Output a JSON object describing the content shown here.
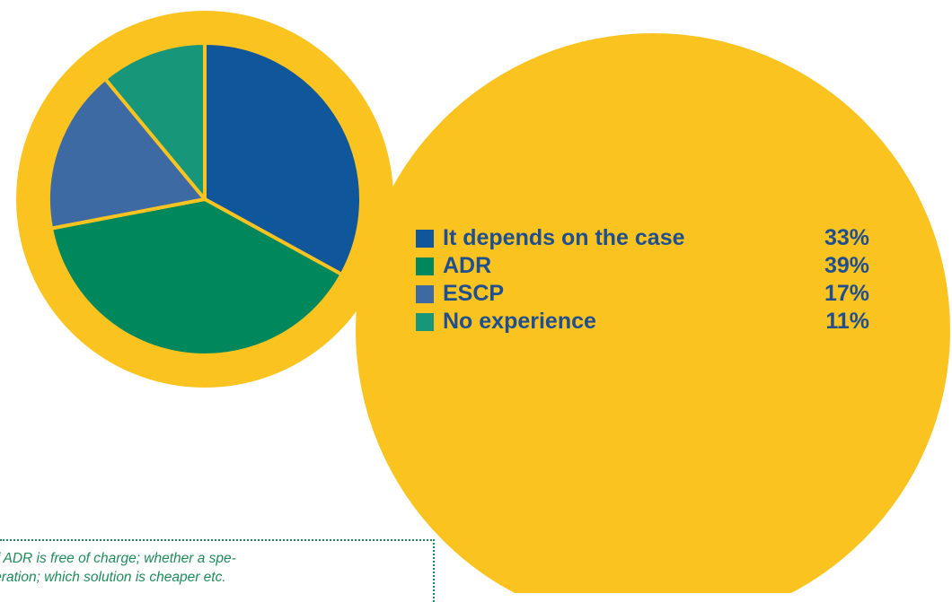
{
  "colors": {
    "ring": "#fbc31f",
    "slice_separator": "#fbc31f",
    "legend_text": "#1f4f8f",
    "note_text": "#1f8a5a"
  },
  "chart_data": {
    "type": "pie",
    "title": "",
    "categories": [
      "It depends on the case",
      "ADR",
      "ESCP",
      "No experience"
    ],
    "values": [
      33,
      39,
      17,
      11
    ],
    "value_labels": [
      "33%",
      "39%",
      "17%",
      "11%"
    ],
    "colors": [
      "#10569a",
      "#00885c",
      "#3d6aa3",
      "#17967a"
    ],
    "legend_placement": "right"
  },
  "note": {
    "lines": [
      "suitable; if ADR is free of charge; whether a spe-",
      "er’s cooperation; which solution is cheaper etc."
    ]
  }
}
